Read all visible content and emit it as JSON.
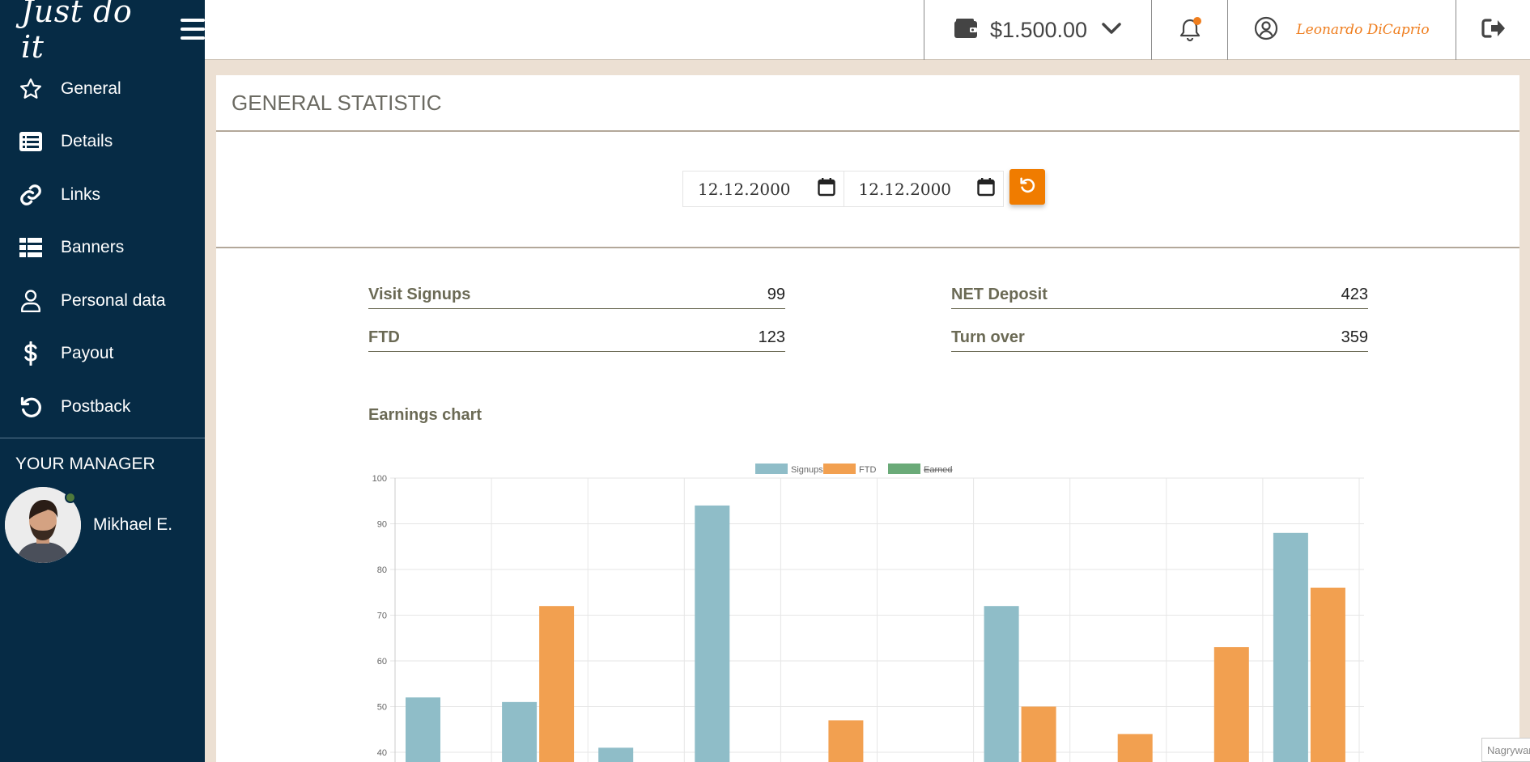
{
  "brand": {
    "logo": "Just do it"
  },
  "sidebar": {
    "items": [
      {
        "label": "General",
        "icon": "star-icon"
      },
      {
        "label": "Details",
        "icon": "list-icon"
      },
      {
        "label": "Links",
        "icon": "link-icon"
      },
      {
        "label": "Banners",
        "icon": "grid-list-icon"
      },
      {
        "label": "Personal data",
        "icon": "user-icon"
      },
      {
        "label": "Payout",
        "icon": "dollar-icon"
      },
      {
        "label": "Postback",
        "icon": "undo-icon"
      }
    ],
    "manager_title": "YOUR MANAGER",
    "manager_name": "Mikhael E."
  },
  "topbar": {
    "balance": "$1.500.00",
    "user_name": "Leonardo DiCaprio"
  },
  "page": {
    "title": "GENERAL STATISTIC",
    "date_from": "12.12.2000",
    "date_to": "12.12.2000"
  },
  "stats": {
    "visit_signups": {
      "label": "Visit Signups",
      "value": "99"
    },
    "net_deposit": {
      "label": "NET Deposit",
      "value": "423"
    },
    "ftd": {
      "label": "FTD",
      "value": "123"
    },
    "turn_over": {
      "label": "Turn over",
      "value": "359"
    }
  },
  "chart_title": "Earnings chart",
  "recording_badge": "Nagrywanie",
  "colors": {
    "sidebar": "#062b45",
    "accent": "#f07c00",
    "signups": "#8fbdc8",
    "ftd": "#f2a050",
    "earned": "#6aaa78"
  },
  "chart_data": {
    "type": "bar",
    "legend": [
      {
        "name": "Signups",
        "hidden": false
      },
      {
        "name": "FTD",
        "hidden": false
      },
      {
        "name": "Earned",
        "hidden": true
      }
    ],
    "ylim": [
      0,
      100
    ],
    "y_ticks": [
      40,
      50,
      60,
      70,
      80,
      90,
      100
    ],
    "grid": true,
    "legend_position": "top",
    "series": [
      {
        "name": "Signups",
        "values": [
          52,
          51,
          41,
          94,
          0,
          0,
          72,
          0,
          0,
          88
        ]
      },
      {
        "name": "FTD",
        "values": [
          0,
          72,
          0,
          0,
          47,
          0,
          50,
          44,
          63,
          76
        ]
      }
    ]
  }
}
